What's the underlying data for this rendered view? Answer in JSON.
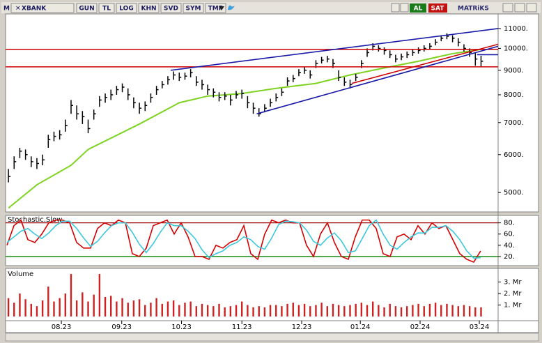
{
  "toolbar": {
    "menu": "M",
    "symbol": "XBANK",
    "buttons": [
      "GUN",
      "TL",
      "LOG",
      "KHN",
      "SVD",
      "SYM",
      "TMP"
    ],
    "buy": "AL",
    "sell": "SAT",
    "brand": "MATRiKS"
  },
  "chart_data": [
    {
      "type": "ohlc",
      "log_scale": true,
      "color": "#000000",
      "xlim": [
        -0.5,
        86
      ],
      "ylim": [
        4570,
        11800
      ],
      "yticks": [
        {
          "value": 5000,
          "label": "5000."
        },
        {
          "value": 6000,
          "label": "6000."
        },
        {
          "value": 7000,
          "label": "7000."
        },
        {
          "value": 8000,
          "label": "8000."
        },
        {
          "value": 9000,
          "label": "9000."
        },
        {
          "value": 10000,
          "label": "10000."
        },
        {
          "value": 11000,
          "label": "11000."
        }
      ],
      "high": [
        5600,
        5950,
        6200,
        6150,
        5950,
        5900,
        6000,
        6600,
        6700,
        6750,
        7100,
        7800,
        7600,
        7400,
        7100,
        7450,
        7950,
        8050,
        8200,
        8350,
        8450,
        8250,
        7900,
        7700,
        7750,
        8050,
        8350,
        8550,
        8750,
        8950,
        8900,
        8900,
        9050,
        8750,
        8600,
        8400,
        8250,
        8100,
        8100,
        8000,
        8150,
        8200,
        7950,
        7700,
        7500,
        7650,
        7850,
        8050,
        8250,
        8700,
        8800,
        9050,
        9150,
        9000,
        9450,
        9600,
        9650,
        9500,
        9000,
        8700,
        8600,
        8850,
        9450,
        10000,
        10250,
        10150,
        10050,
        9900,
        9700,
        9750,
        9850,
        9950,
        10050,
        10150,
        10250,
        10450,
        10650,
        10750,
        10650,
        10500,
        10200,
        10000,
        9800,
        9650
      ],
      "low": [
        5250,
        5600,
        5900,
        5850,
        5650,
        5600,
        5700,
        6200,
        6400,
        6450,
        6700,
        7300,
        7100,
        6950,
        6650,
        7100,
        7550,
        7700,
        7800,
        8000,
        8100,
        7800,
        7500,
        7300,
        7400,
        7700,
        8000,
        8250,
        8400,
        8600,
        8550,
        8600,
        8700,
        8350,
        8200,
        8000,
        7900,
        7750,
        7800,
        7600,
        7850,
        7850,
        7500,
        7300,
        7200,
        7350,
        7550,
        7750,
        7950,
        8350,
        8500,
        8750,
        8850,
        8650,
        9100,
        9300,
        9350,
        9100,
        8550,
        8350,
        8250,
        8550,
        9100,
        9600,
        9900,
        9850,
        9700,
        9550,
        9350,
        9450,
        9550,
        9650,
        9750,
        9850,
        9950,
        10150,
        10350,
        10450,
        10300,
        10100,
        9850,
        9600,
        9200,
        9150
      ],
      "close": [
        5400,
        5800,
        6100,
        6000,
        5800,
        5750,
        5850,
        6450,
        6550,
        6600,
        6900,
        7600,
        7300,
        7200,
        6800,
        7300,
        7800,
        7900,
        8000,
        8200,
        8300,
        8000,
        7700,
        7500,
        7600,
        7900,
        8200,
        8400,
        8600,
        8800,
        8700,
        8750,
        8900,
        8500,
        8400,
        8200,
        8100,
        7900,
        7950,
        7800,
        8000,
        8050,
        7700,
        7500,
        7300,
        7500,
        7700,
        7900,
        8100,
        8550,
        8650,
        8900,
        9000,
        8800,
        9300,
        9450,
        9500,
        9300,
        8700,
        8500,
        8400,
        8700,
        9300,
        9800,
        10100,
        10000,
        9900,
        9700,
        9500,
        9600,
        9700,
        9800,
        9900,
        10000,
        10100,
        10300,
        10500,
        10600,
        10500,
        10300,
        10000,
        9800,
        9500,
        9400
      ],
      "moving_average": {
        "color": "#7ed321",
        "x": [
          0,
          5,
          11,
          14,
          23,
          30,
          35,
          41,
          47,
          54,
          60,
          66,
          72,
          78,
          83
        ],
        "values": [
          4640,
          5190,
          5700,
          6150,
          6950,
          7700,
          7950,
          8050,
          8250,
          8450,
          8800,
          9100,
          9400,
          9750,
          9950
        ]
      },
      "lines": [
        {
          "color": "#cc0000",
          "x": [
            -0.5,
            86
          ],
          "values": [
            9950,
            9950
          ]
        },
        {
          "color": "#cc0000",
          "x": [
            -0.5,
            86
          ],
          "values": [
            9150,
            9150
          ]
        },
        {
          "color": "#1a1aa8",
          "x": [
            28.5,
            86
          ],
          "values": [
            9000,
            11000
          ]
        },
        {
          "color": "#1a1aa8",
          "x": [
            43.6,
            86
          ],
          "values": [
            7300,
            10100
          ]
        },
        {
          "color": "#cc0000",
          "x": [
            60.3,
            86
          ],
          "values": [
            8450,
            10200
          ]
        },
        {
          "color": "#1a1aa8",
          "x": [
            82.3,
            86
          ],
          "values": [
            9700,
            9700
          ]
        }
      ]
    },
    {
      "type": "line",
      "title": "Stochastic.Slow",
      "xlim": [
        -0.2,
        70.5
      ],
      "ylim": [
        5,
        92
      ],
      "yticks": [
        {
          "value": 20,
          "label": "20."
        },
        {
          "value": 40,
          "label": "40."
        },
        {
          "value": 60,
          "label": "60."
        },
        {
          "value": 80,
          "label": "80."
        }
      ],
      "levels": [
        {
          "value": 80,
          "color": "#a00000"
        },
        {
          "value": 20,
          "color": "#008000"
        }
      ],
      "series": [
        {
          "color": "#d40000",
          "values": [
            40,
            75,
            85,
            50,
            45,
            60,
            80,
            85,
            85,
            80,
            45,
            35,
            35,
            70,
            80,
            75,
            85,
            80,
            25,
            20,
            35,
            75,
            80,
            85,
            60,
            80,
            55,
            20,
            20,
            15,
            40,
            35,
            45,
            50,
            75,
            25,
            15,
            60,
            85,
            80,
            85,
            80,
            80,
            40,
            20,
            60,
            80,
            45,
            20,
            15,
            55,
            85,
            85,
            70,
            25,
            20,
            55,
            60,
            50,
            75,
            60,
            80,
            70,
            75,
            50,
            25,
            15,
            10,
            30
          ]
        },
        {
          "color": "#3cc8dc",
          "values": [
            45,
            55,
            65,
            70,
            60,
            52,
            62,
            75,
            83,
            83,
            70,
            53,
            38,
            47,
            62,
            75,
            80,
            80,
            63,
            42,
            27,
            43,
            63,
            80,
            75,
            75,
            65,
            52,
            32,
            18,
            25,
            30,
            40,
            45,
            55,
            50,
            38,
            33,
            53,
            77,
            83,
            82,
            80,
            67,
            47,
            40,
            53,
            62,
            48,
            27,
            30,
            52,
            75,
            85,
            60,
            40,
            33,
            45,
            55,
            62,
            62,
            72,
            72,
            75,
            65,
            50,
            30,
            17,
            18
          ]
        }
      ]
    },
    {
      "type": "bar",
      "title": "Volume",
      "color": "#cc2222",
      "xlim": [
        -0.5,
        86
      ],
      "ylim": [
        0,
        3.94
      ],
      "yticks": [
        {
          "value": 1,
          "label": "1. Mr"
        },
        {
          "value": 2,
          "label": "2. Mr"
        },
        {
          "value": 3,
          "label": "3. Mr"
        }
      ],
      "xticks": [
        {
          "value": 9.3,
          "label": "08.23"
        },
        {
          "value": 19.9,
          "label": "09.23"
        },
        {
          "value": 30.4,
          "label": "10.23"
        },
        {
          "value": 41,
          "label": "11.23"
        },
        {
          "value": 51.5,
          "label": "12.23"
        },
        {
          "value": 61.8,
          "label": "01.24"
        },
        {
          "value": 72.3,
          "label": "02.24"
        },
        {
          "value": 82.7,
          "label": "03.24"
        }
      ],
      "values": [
        1.6,
        1.2,
        2.0,
        1.5,
        1.1,
        0.9,
        1.4,
        2.6,
        1.3,
        1.6,
        2.0,
        3.7,
        1.4,
        2.1,
        1.3,
        1.9,
        3.7,
        1.7,
        1.8,
        1.3,
        1.6,
        1.2,
        1.4,
        1.5,
        1.0,
        1.2,
        1.6,
        1.1,
        1.3,
        1.4,
        1.0,
        1.2,
        1.3,
        0.9,
        1.1,
        1.0,
        0.9,
        1.1,
        0.8,
        0.9,
        1.0,
        1.3,
        1.0,
        0.8,
        0.9,
        0.8,
        1.0,
        1.0,
        0.9,
        1.1,
        1.2,
        1.0,
        1.1,
        0.9,
        1.0,
        1.2,
        0.9,
        1.1,
        1.0,
        0.9,
        1.0,
        1.1,
        1.2,
        1.0,
        1.3,
        1.0,
        0.8,
        1.1,
        0.9,
        0.8,
        0.9,
        1.0,
        1.1,
        0.9,
        1.1,
        1.2,
        1.0,
        1.1,
        1.0,
        0.9,
        1.0,
        0.9,
        0.8,
        0.8
      ]
    }
  ]
}
